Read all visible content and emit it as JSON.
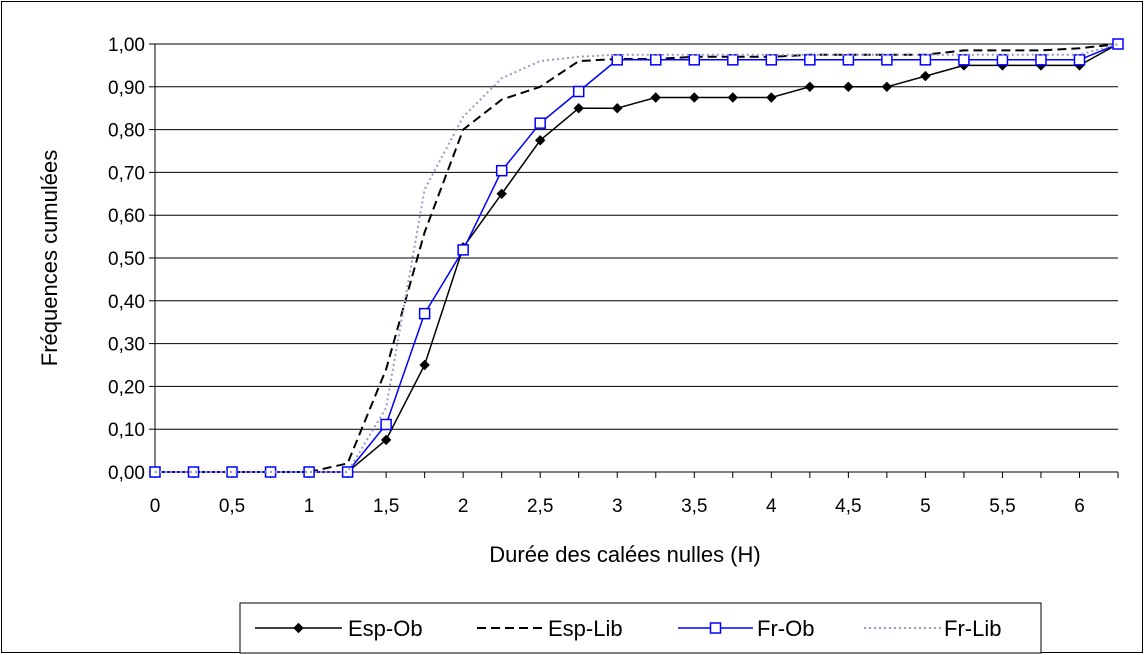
{
  "chart_data": {
    "type": "line",
    "xlabel": "Durée  des calées nulles (H)",
    "ylabel": "Fréquences cumulées",
    "xlim": [
      0,
      6.25
    ],
    "ylim": [
      0,
      1.0
    ],
    "x_ticks": [
      "0",
      "0,5",
      "1",
      "1,5",
      "2",
      "2,5",
      "3",
      "3,5",
      "4",
      "4,5",
      "5",
      "5,5",
      "6"
    ],
    "x_tick_values": [
      0,
      0.5,
      1,
      1.5,
      2,
      2.5,
      3,
      3.5,
      4,
      4.5,
      5,
      5.5,
      6
    ],
    "y_ticks": [
      "0,00",
      "0,10",
      "0,20",
      "0,30",
      "0,40",
      "0,50",
      "0,60",
      "0,70",
      "0,80",
      "0,90",
      "1,00"
    ],
    "y_tick_values": [
      0,
      0.1,
      0.2,
      0.3,
      0.4,
      0.5,
      0.6,
      0.7,
      0.8,
      0.9,
      1.0
    ],
    "grid": "horizontal",
    "legend_position": "bottom",
    "x": [
      0,
      0.25,
      0.5,
      0.75,
      1,
      1.25,
      1.5,
      1.75,
      2,
      2.25,
      2.5,
      2.75,
      3,
      3.25,
      3.5,
      3.75,
      4,
      4.25,
      4.5,
      4.75,
      5,
      5.25,
      5.5,
      5.75,
      6,
      6.25
    ],
    "series": [
      {
        "name": "Esp-Ob",
        "color": "#000000",
        "style": "solid",
        "marker": "diamond",
        "values": [
          0,
          0,
          0,
          0,
          0,
          0,
          0.075,
          0.25,
          0.525,
          0.65,
          0.775,
          0.85,
          0.85,
          0.875,
          0.875,
          0.875,
          0.875,
          0.9,
          0.9,
          0.9,
          0.925,
          0.95,
          0.95,
          0.95,
          0.95,
          1.0
        ]
      },
      {
        "name": "Esp-Lib",
        "color": "#000000",
        "style": "dashed",
        "marker": "none",
        "values": [
          0,
          0,
          0,
          0,
          0,
          0.02,
          0.24,
          0.56,
          0.8,
          0.87,
          0.9,
          0.96,
          0.965,
          0.965,
          0.97,
          0.97,
          0.97,
          0.975,
          0.975,
          0.975,
          0.975,
          0.985,
          0.985,
          0.985,
          0.99,
          1.0
        ]
      },
      {
        "name": "Fr-Ob",
        "color": "#0000ff",
        "style": "solid",
        "marker": "square",
        "values": [
          0,
          0,
          0,
          0,
          0,
          0,
          0.111,
          0.37,
          0.519,
          0.704,
          0.815,
          0.889,
          0.963,
          0.963,
          0.963,
          0.963,
          0.963,
          0.963,
          0.963,
          0.963,
          0.963,
          0.963,
          0.963,
          0.963,
          0.963,
          1.0
        ]
      },
      {
        "name": "Fr-Lib",
        "color": "#9999cc",
        "style": "dotted",
        "marker": "none",
        "values": [
          0,
          0,
          0,
          0,
          0,
          0,
          0.15,
          0.66,
          0.83,
          0.92,
          0.96,
          0.97,
          0.975,
          0.975,
          0.975,
          0.975,
          0.975,
          0.975,
          0.975,
          0.975,
          0.975,
          0.975,
          0.975,
          0.975,
          0.975,
          1.0
        ]
      }
    ]
  }
}
